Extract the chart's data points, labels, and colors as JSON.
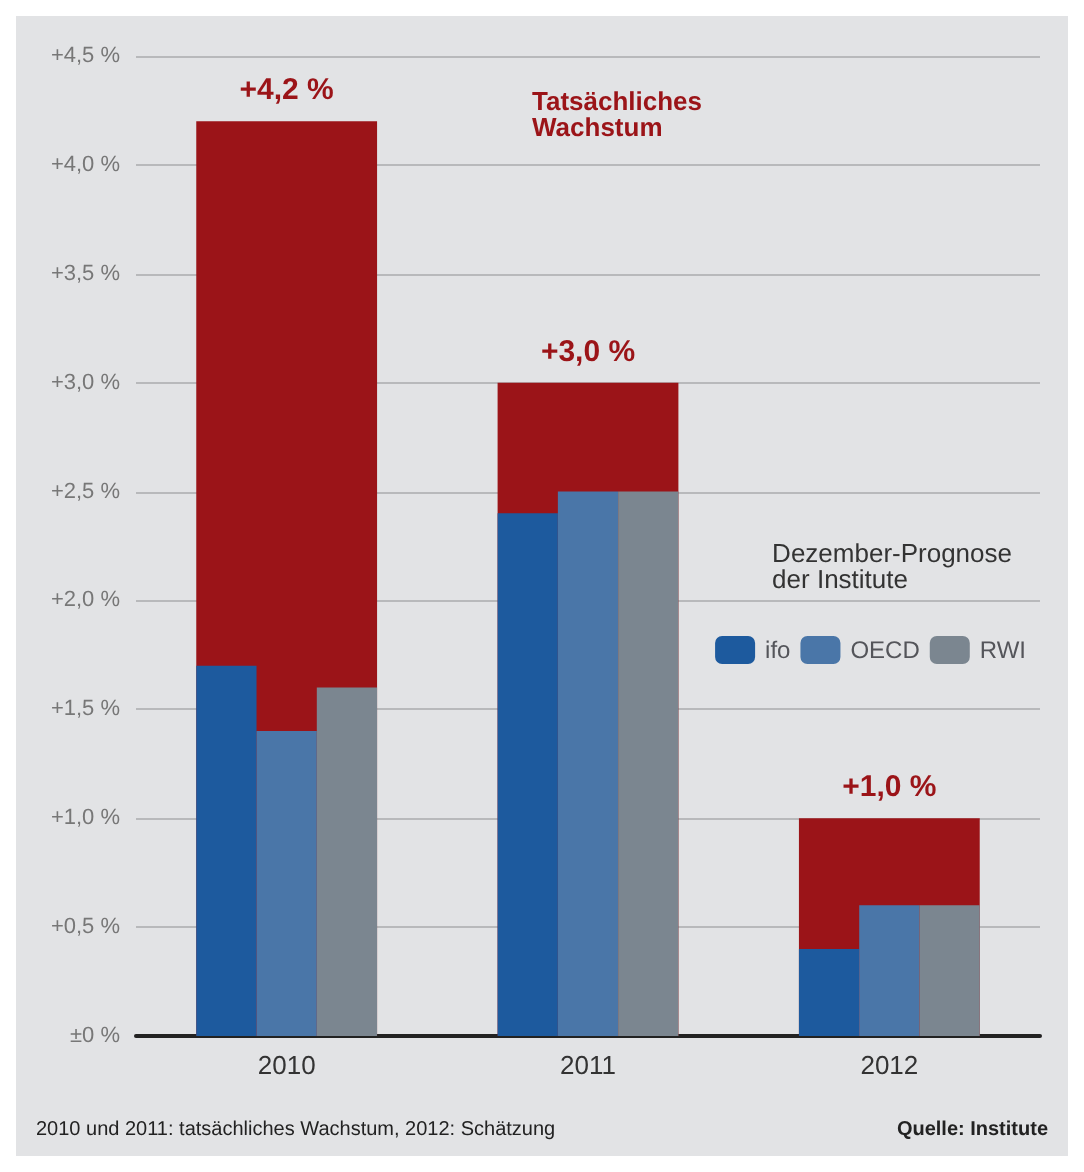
{
  "chart_data": {
    "type": "bar",
    "categories": [
      "2010",
      "2011",
      "2012"
    ],
    "series": [
      {
        "color": "#9b1418",
        "values": [
          4.2,
          3.0,
          1.0
        ],
        "value_labels": [
          "+4,2 %",
          "+3,0 %",
          "+1,0 %"
        ]
      },
      {
        "name": "ifo",
        "color": "#1d5a9e",
        "values": [
          1.7,
          2.4,
          0.4
        ]
      },
      {
        "name": "OECD",
        "color": "#4a76a8",
        "values": [
          1.4,
          2.5,
          0.6
        ]
      },
      {
        "name": "RWI",
        "color": "#7b8690",
        "values": [
          1.6,
          2.5,
          0.6
        ]
      }
    ],
    "ylim": [
      0,
      4.5
    ],
    "yticks": [
      {
        "value": 0,
        "label": "±0 %"
      },
      {
        "value": 0.5,
        "label": "+0,5 %"
      },
      {
        "value": 1,
        "label": "+1,0 %"
      },
      {
        "value": 1.5,
        "label": "+1,5 %"
      },
      {
        "value": 2,
        "label": "+2,0 %"
      },
      {
        "value": 2.5,
        "label": "+2,5 %"
      },
      {
        "value": 3,
        "label": "+3,0 %"
      },
      {
        "value": 3.5,
        "label": "+3,5 %"
      },
      {
        "value": 4,
        "label": "+4,0 %"
      },
      {
        "value": 4.5,
        "label": "+4,5 %"
      }
    ],
    "grid": "y",
    "legend": "right",
    "legend_title": "Dezember-Prognose der Institute",
    "annotations": [
      "Tatsächliches Wachstum",
      "2010 und 2011: tatsächliches Wachstum, 2012: Schätzung",
      "Quelle: Institute"
    ]
  }
}
